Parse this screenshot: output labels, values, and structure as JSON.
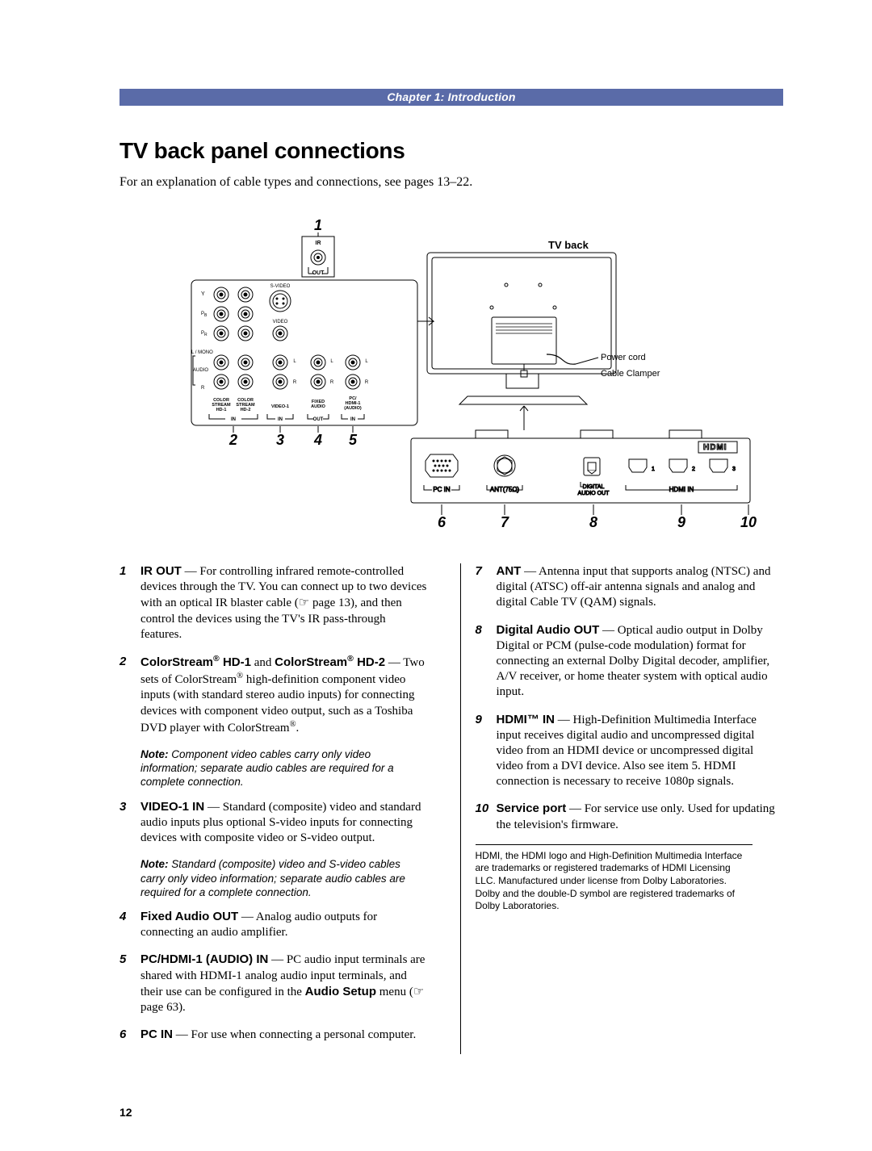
{
  "chapterBar": "Chapter 1: Introduction",
  "heading": "TV back panel connections",
  "intro": "For an explanation of cable types and connections, see pages 13–22.",
  "figure": {
    "callouts": [
      "1",
      "2",
      "3",
      "4",
      "5",
      "6",
      "7",
      "8",
      "9",
      "10"
    ],
    "tvBackLabel": "TV back",
    "powerCord": "Power cord",
    "cableClamper": "Cable Clamper",
    "panelLabels": {
      "ir": "IR",
      "out": "OUT",
      "y": "Y",
      "pb": "PB",
      "pr": "PR",
      "lmono": "L / MONO",
      "audio": "AUDIO",
      "r": "R",
      "svideo": "S-VIDEO",
      "video": "VIDEO",
      "l": "L",
      "cs1": "COLOR STREAM HD-1",
      "cs2": "COLOR STREAM HD-2",
      "video1": "VIDEO-1",
      "fixed": "FIXED AUDIO",
      "pcaudio": "PC/ HDMI-1 (AUDIO)",
      "in": "IN",
      "outRow": "OUT",
      "pcin": "PC IN",
      "ant": "ANT(75Ω)",
      "digital": "DIGITAL AUDIO OUT",
      "hdmi": "HDMI",
      "hdmiIn": "HDMI IN"
    },
    "calloutStyle": {
      "fontFamily": "Arial, Helvetica, sans-serif",
      "fontWeight": "bold",
      "fontStyle": "italic",
      "fontSize": 18,
      "color": "#000000"
    }
  },
  "leftItems": [
    {
      "num": "1",
      "html": "<span class='b'>IR OUT</span> — For controlling infrared remote-controlled devices through the TV. You can connect up to two devices with an optical IR blaster cable (<span class='hand'>☞</span> page 13), and then control the devices using the TV's IR pass-through features."
    },
    {
      "num": "2",
      "html": "<span class='b'>ColorStream<span class='sup'>®</span> HD-1</span> and <span class='b'>ColorStream<span class='sup'>®</span> HD-2</span> — Two sets of ColorStream<span class='sup'>®</span> high-definition component video inputs (with standard stereo audio inputs) for connecting devices with component video output, such as a Toshiba DVD player with ColorStream<span class='sup'>®</span>.",
      "note": "Component video cables carry only video information; separate audio cables are required for a complete connection."
    },
    {
      "num": "3",
      "html": "<span class='b'>VIDEO-1 IN</span> — Standard (composite) video and standard audio inputs plus optional S-video inputs for connecting devices with composite video or S-video output.",
      "note": "Standard (composite) video and S-video cables carry only video information; separate audio cables are required for a complete connection."
    },
    {
      "num": "4",
      "html": "<span class='b'>Fixed Audio OUT</span> — Analog audio outputs for connecting an audio amplifier."
    },
    {
      "num": "5",
      "html": "<span class='b'>PC/HDMI-1 (AUDIO) IN</span> — PC audio input terminals are shared with HDMI-1 analog audio input terminals, and their use can be configured in the <span class='b'>Audio Setup</span> menu (<span class='hand'>☞</span> page 63)."
    },
    {
      "num": "6",
      "html": "<span class='b'>PC IN</span> — For use when connecting a personal computer."
    }
  ],
  "rightItems": [
    {
      "num": "7",
      "html": "<span class='b'>ANT</span> — Antenna input that supports analog (NTSC) and digital (ATSC) off-air antenna signals and analog and digital Cable TV (QAM) signals."
    },
    {
      "num": "8",
      "html": "<span class='b'>Digital Audio OUT</span> — Optical audio output in Dolby Digital or PCM (pulse-code modulation) format for connecting an external Dolby Digital decoder, amplifier, A/V receiver, or home theater system with optical audio input."
    },
    {
      "num": "9",
      "html": "<span class='b'>HDMI™ IN</span> — High-Definition Multimedia Interface input receives digital audio and uncompressed digital video from an HDMI device or uncompressed digital video from a DVI device. Also see item 5. HDMI connection is necessary to receive 1080p signals."
    },
    {
      "num": "10",
      "html": "<span class='b'>Service port</span> — For service use only. Used for updating the television's firmware."
    }
  ],
  "fineprint": "HDMI, the HDMI logo and High-Definition Multimedia Interface are trademarks or registered trademarks of HDMI Licensing LLC. Manufactured under license from Dolby Laboratories. Dolby and the double-D symbol are registered trademarks of Dolby Laboratories.",
  "pageNumber": "12",
  "colors": {
    "barBg": "#5a6ba8",
    "barFg": "#ffffff",
    "text": "#000000",
    "fineprint": "#444444"
  }
}
